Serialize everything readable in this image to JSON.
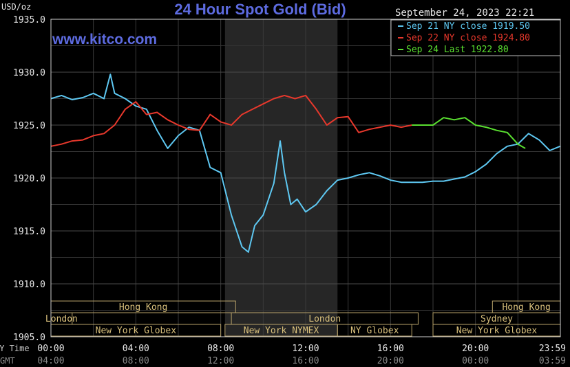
{
  "chart_data": {
    "type": "line",
    "title": "24 Hour Spot Gold (Bid)",
    "watermark": "www.kitco.com",
    "date_label": "September 24, 2023 22:21",
    "y_unit": "USD/oz",
    "ylim": [
      1905.0,
      1935.0
    ],
    "y_ticks": [
      "1935.0",
      "1930.0",
      "1925.0",
      "1920.0",
      "1915.0",
      "1910.0",
      "1905.0"
    ],
    "x_row_labels": [
      "NY Time",
      "GMT"
    ],
    "x_ticks_ny": [
      "00:00",
      "04:00",
      "08:00",
      "12:00",
      "16:00",
      "20:00",
      "23:59"
    ],
    "x_ticks_gmt": [
      "04:00",
      "08:00",
      "12:00",
      "16:00",
      "20:00",
      "00:00",
      "03:59"
    ],
    "xlim_hours": [
      0,
      24
    ],
    "grid": true,
    "legend_position": "top-right",
    "shaded_session": "New York NYMEX",
    "sessions": [
      {
        "name": "Hong Kong",
        "row": 1,
        "start": 0,
        "end": 0
      },
      {
        "name": "Hong Kong",
        "row": 1,
        "start": 0,
        "end": 8.7
      },
      {
        "name": "London",
        "row": 2,
        "start": 0,
        "end": 1
      },
      {
        "name": "London",
        "row": 2,
        "start": 8.5,
        "end": 17.3
      },
      {
        "name": "New York Globex",
        "row": 3,
        "start": 0,
        "end": 8.0
      },
      {
        "name": "New York NYMEX",
        "row": 3,
        "start": 8.2,
        "end": 13.5
      },
      {
        "name": "NY Globex",
        "row": 3,
        "start": 13.5,
        "end": 17.0
      },
      {
        "name": "New York Globex",
        "row": 3,
        "start": 18.0,
        "end": 24.0
      },
      {
        "name": "Sydney",
        "row": 2,
        "start": 18.0,
        "end": 24.0
      },
      {
        "name": "Hong Kong",
        "row": 1,
        "start": 20.8,
        "end": 24.0
      }
    ],
    "series": [
      {
        "name": "Sep 21 NY close 1919.50",
        "color": "#5ec8f2",
        "x": [
          0,
          0.5,
          1,
          1.5,
          2,
          2.5,
          2.8,
          3,
          3.5,
          4,
          4.5,
          5,
          5.5,
          6,
          6.5,
          7,
          7.5,
          8,
          8.5,
          9,
          9.3,
          9.6,
          10,
          10.5,
          10.8,
          11,
          11.3,
          11.6,
          12,
          12.5,
          13,
          13.5,
          14,
          14.5,
          15,
          15.5,
          16,
          16.5,
          17,
          17.5,
          18,
          18.5,
          19,
          19.5,
          20,
          20.5,
          21,
          21.5,
          22,
          22.5,
          23,
          23.5,
          23.99
        ],
        "y": [
          1927.5,
          1927.8,
          1927.4,
          1927.6,
          1928.0,
          1927.5,
          1929.8,
          1928.0,
          1927.5,
          1926.8,
          1926.5,
          1924.5,
          1922.8,
          1924.0,
          1924.8,
          1924.5,
          1921.0,
          1920.5,
          1916.5,
          1913.5,
          1913.0,
          1915.5,
          1916.5,
          1919.5,
          1923.5,
          1920.5,
          1917.5,
          1918.0,
          1916.8,
          1917.5,
          1918.8,
          1919.8,
          1920.0,
          1920.3,
          1920.5,
          1920.2,
          1919.8,
          1919.6,
          1919.6,
          1919.6,
          1919.7,
          1919.7,
          1919.9,
          1920.1,
          1920.6,
          1921.3,
          1922.3,
          1923.0,
          1923.2,
          1924.2,
          1923.6,
          1922.6,
          1923.0
        ]
      },
      {
        "name": "Sep 22 NY close 1924.80",
        "color": "#e8382c",
        "x": [
          0,
          0.5,
          1,
          1.5,
          2,
          2.5,
          3,
          3.5,
          4,
          4.5,
          5,
          5.5,
          6,
          6.5,
          7,
          7.5,
          8,
          8.5,
          9,
          9.5,
          10,
          10.5,
          11,
          11.5,
          12,
          12.5,
          13,
          13.5,
          14,
          14.5,
          15,
          15.5,
          16,
          16.5,
          17
        ],
        "y": [
          1923.0,
          1923.2,
          1923.5,
          1923.6,
          1924.0,
          1924.2,
          1925.0,
          1926.5,
          1927.2,
          1926.0,
          1926.2,
          1925.5,
          1925.0,
          1924.6,
          1924.5,
          1926.0,
          1925.3,
          1925.0,
          1926.0,
          1926.5,
          1927.0,
          1927.5,
          1927.8,
          1927.5,
          1927.8,
          1926.5,
          1925.0,
          1925.7,
          1925.8,
          1924.3,
          1924.6,
          1924.8,
          1925.0,
          1924.8,
          1925.0
        ]
      },
      {
        "name": "Sep 24 Last 1922.80",
        "color": "#5ae030",
        "x": [
          17,
          17.5,
          18,
          18.5,
          19,
          19.5,
          20,
          20.5,
          21,
          21.5,
          22,
          22.35
        ],
        "y": [
          1925.0,
          1925.0,
          1925.0,
          1925.7,
          1925.5,
          1925.7,
          1925.0,
          1924.8,
          1924.5,
          1924.3,
          1923.2,
          1922.8
        ]
      }
    ]
  }
}
